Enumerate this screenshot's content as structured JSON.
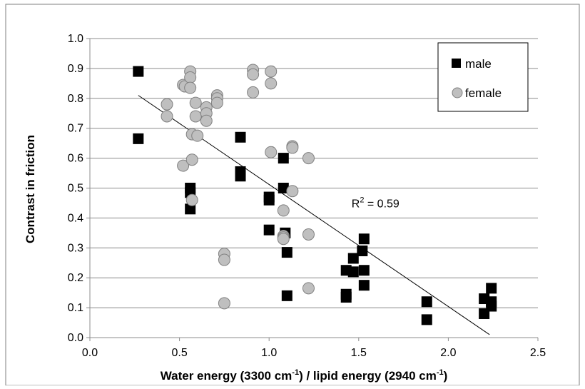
{
  "chart_data": {
    "type": "scatter",
    "xlabel": "Water energy (3300 cm",
    "xlabel_sup1": "-1",
    "xlabel_mid": ") / lipid energy (2940 cm",
    "xlabel_sup2": "-1",
    "xlabel_end": ")",
    "ylabel": "Contrast in friction",
    "xlim": [
      0.0,
      2.5
    ],
    "ylim": [
      0.0,
      1.0
    ],
    "x_ticks": [
      "0.0",
      "0.5",
      "1.0",
      "1.5",
      "2.0",
      "2.5"
    ],
    "y_ticks": [
      "0.0",
      "0.1",
      "0.2",
      "0.3",
      "0.4",
      "0.5",
      "0.6",
      "0.7",
      "0.8",
      "0.9",
      "1.0"
    ],
    "grid": "horizontal",
    "legend_position": "top-right",
    "annotation": {
      "prefix": "R",
      "sup": "2",
      "suffix": " = 0.59",
      "x": 1.46,
      "y": 0.435
    },
    "trendline": {
      "x": [
        0.27,
        2.23
      ],
      "y": [
        0.81,
        0.01
      ]
    },
    "series": [
      {
        "name": "male",
        "marker": "square",
        "color": "#000000",
        "points": [
          [
            0.27,
            0.89
          ],
          [
            0.27,
            0.665
          ],
          [
            0.56,
            0.5
          ],
          [
            0.56,
            0.485
          ],
          [
            0.56,
            0.43
          ],
          [
            0.84,
            0.67
          ],
          [
            0.84,
            0.555
          ],
          [
            0.84,
            0.54
          ],
          [
            1.0,
            0.47
          ],
          [
            1.0,
            0.46
          ],
          [
            1.0,
            0.36
          ],
          [
            1.08,
            0.6
          ],
          [
            1.08,
            0.5
          ],
          [
            1.09,
            0.35
          ],
          [
            1.1,
            0.285
          ],
          [
            1.1,
            0.14
          ],
          [
            1.43,
            0.225
          ],
          [
            1.43,
            0.145
          ],
          [
            1.43,
            0.135
          ],
          [
            1.47,
            0.265
          ],
          [
            1.47,
            0.22
          ],
          [
            1.52,
            0.29
          ],
          [
            1.53,
            0.33
          ],
          [
            1.53,
            0.225
          ],
          [
            1.53,
            0.175
          ],
          [
            1.88,
            0.12
          ],
          [
            1.88,
            0.06
          ],
          [
            2.2,
            0.13
          ],
          [
            2.2,
            0.08
          ],
          [
            2.24,
            0.165
          ],
          [
            2.24,
            0.12
          ],
          [
            2.24,
            0.105
          ]
        ]
      },
      {
        "name": "female",
        "marker": "circle",
        "color": "#bfbfbf",
        "points": [
          [
            0.43,
            0.78
          ],
          [
            0.43,
            0.74
          ],
          [
            0.52,
            0.845
          ],
          [
            0.53,
            0.84
          ],
          [
            0.56,
            0.89
          ],
          [
            0.56,
            0.87
          ],
          [
            0.56,
            0.835
          ],
          [
            0.52,
            0.575
          ],
          [
            0.57,
            0.68
          ],
          [
            0.57,
            0.595
          ],
          [
            0.57,
            0.46
          ],
          [
            0.59,
            0.785
          ],
          [
            0.59,
            0.74
          ],
          [
            0.6,
            0.675
          ],
          [
            0.65,
            0.77
          ],
          [
            0.65,
            0.75
          ],
          [
            0.65,
            0.725
          ],
          [
            0.71,
            0.81
          ],
          [
            0.71,
            0.8
          ],
          [
            0.71,
            0.785
          ],
          [
            0.75,
            0.28
          ],
          [
            0.75,
            0.26
          ],
          [
            0.75,
            0.115
          ],
          [
            0.91,
            0.895
          ],
          [
            0.91,
            0.88
          ],
          [
            0.91,
            0.82
          ],
          [
            1.01,
            0.89
          ],
          [
            1.01,
            0.85
          ],
          [
            1.01,
            0.62
          ],
          [
            1.08,
            0.425
          ],
          [
            1.08,
            0.34
          ],
          [
            1.08,
            0.335
          ],
          [
            1.08,
            0.33
          ],
          [
            1.13,
            0.64
          ],
          [
            1.13,
            0.635
          ],
          [
            1.13,
            0.49
          ],
          [
            1.22,
            0.6
          ],
          [
            1.22,
            0.345
          ],
          [
            1.22,
            0.165
          ]
        ]
      }
    ]
  }
}
